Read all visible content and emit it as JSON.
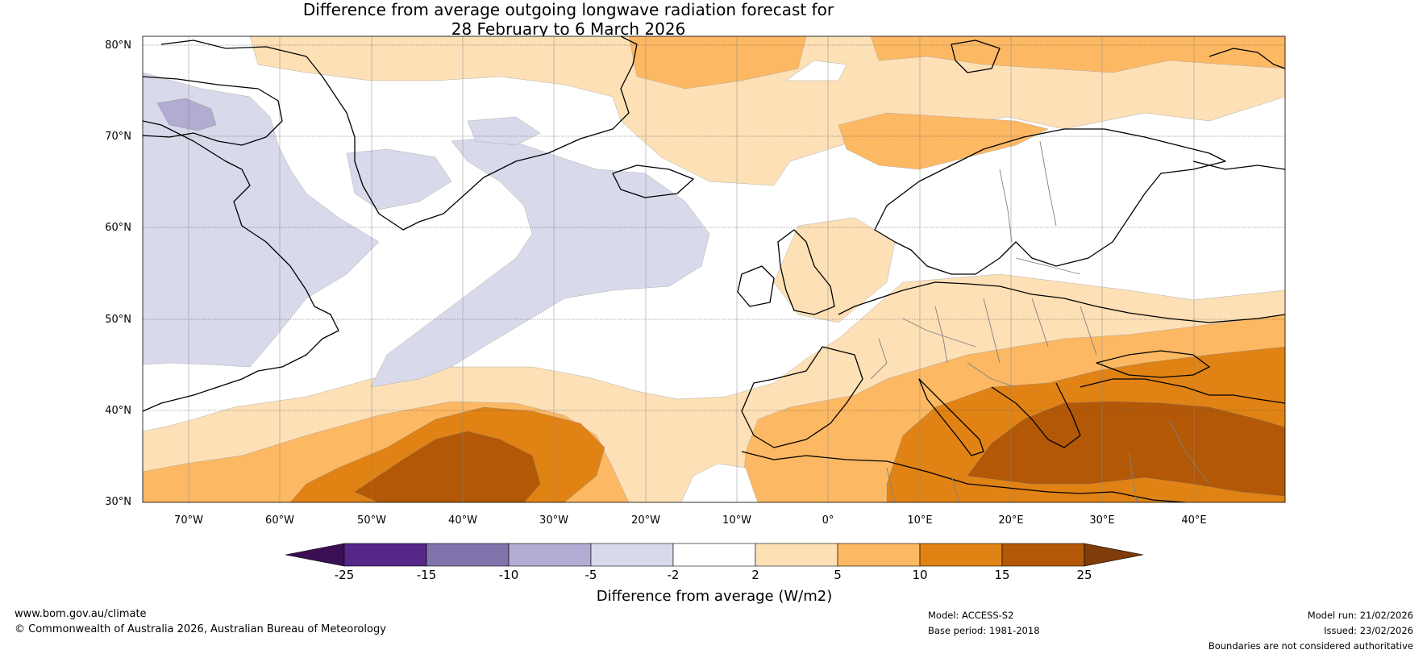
{
  "title": {
    "line1": "Difference from average outgoing longwave radiation forecast for",
    "line2": "28 February to 6 March 2026"
  },
  "map": {
    "region": "North Atlantic and Europe",
    "lat_labels": [
      "80°N",
      "70°N",
      "60°N",
      "50°N",
      "40°N",
      "30°N"
    ],
    "lon_labels": [
      "70°W",
      "60°W",
      "50°W",
      "40°W",
      "30°W",
      "20°W",
      "10°W",
      "0°",
      "10°E",
      "20°E",
      "30°E",
      "40°E"
    ]
  },
  "colorbar": {
    "label": "Difference from average (W/m2)",
    "ticks": [
      "-25",
      "-15",
      "-10",
      "-5",
      "-2",
      "2",
      "5",
      "10",
      "15",
      "25"
    ],
    "colors": [
      "#3b0f53",
      "#542788",
      "#8073ac",
      "#b2abd2",
      "#d8daeb",
      "#ffffff",
      "#fee0b6",
      "#fdb863",
      "#e08214",
      "#b35806",
      "#7f3b08"
    ]
  },
  "footer": {
    "website": "www.bom.gov.au/climate",
    "copyright": "© Commonwealth of Australia 2026, Australian Bureau of Meteorology",
    "model": "Model: ACCESS-S2",
    "base_period": "Base period: 1981-2018",
    "model_run": "Model run: 21/02/2026",
    "issued": "Issued: 23/02/2026",
    "disclaimer": "Boundaries are not considered authoritative"
  }
}
